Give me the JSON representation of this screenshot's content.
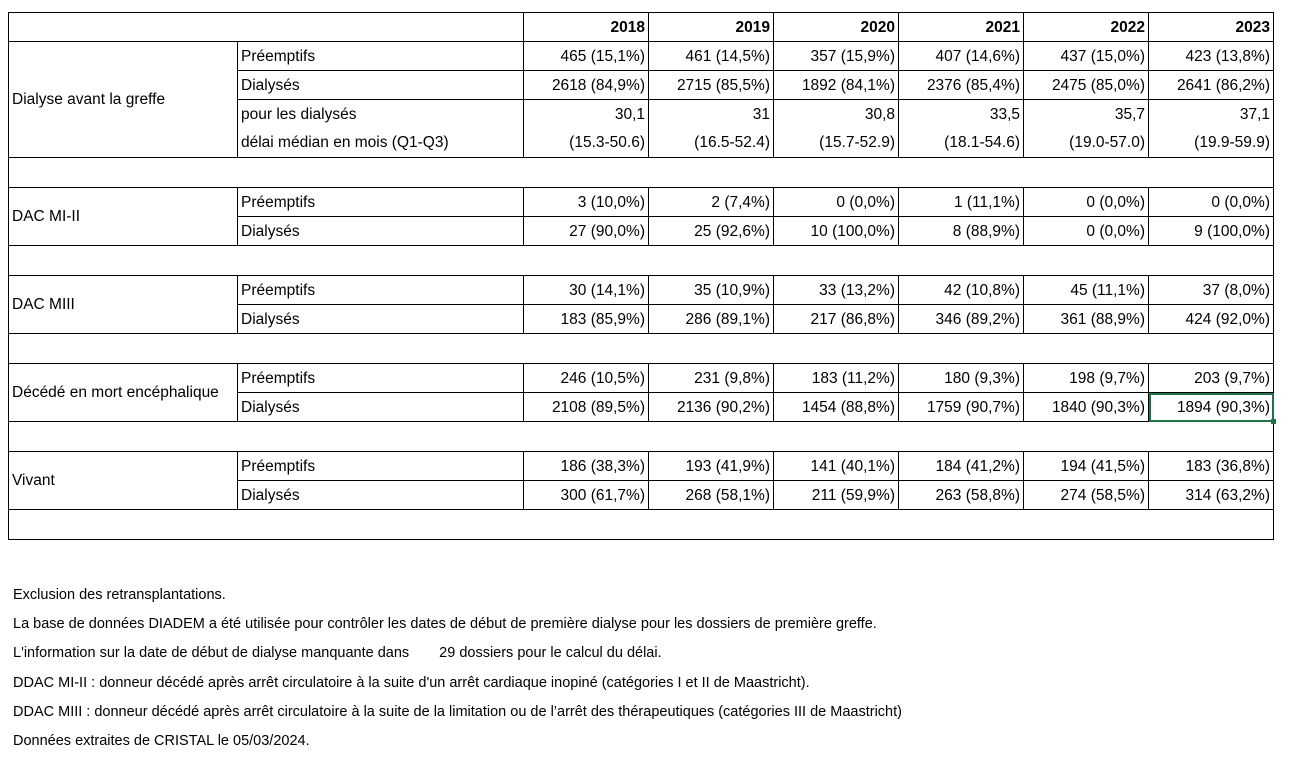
{
  "years": [
    "2018",
    "2019",
    "2020",
    "2021",
    "2022",
    "2023"
  ],
  "groups": [
    {
      "label": "Dialyse avant la greffe",
      "rows": [
        {
          "label": "Préemptifs",
          "values": [
            "465 (15,1%)",
            "461 (14,5%)",
            "357 (15,9%)",
            "407 (14,6%)",
            "437 (15,0%)",
            "423 (13,8%)"
          ]
        },
        {
          "label": "Dialysés",
          "values": [
            "2618 (84,9%)",
            "2715 (85,5%)",
            "1892 (84,1%)",
            "2376 (85,4%)",
            "2475 (85,0%)",
            "2641 (86,2%)"
          ]
        },
        {
          "label": "pour les dialysés",
          "values": [
            "30,1",
            "31",
            "30,8",
            "33,5",
            "35,7",
            "37,1"
          ]
        },
        {
          "label": "délai médian en mois (Q1-Q3)",
          "values": [
            "(15.3-50.6)",
            "(16.5-52.4)",
            "(15.7-52.9)",
            "(18.1-54.6)",
            "(19.0-57.0)",
            "(19.9-59.9)"
          ]
        }
      ]
    },
    {
      "label": "DAC MI-II",
      "rows": [
        {
          "label": "Préemptifs",
          "values": [
            "3 (10,0%)",
            "2 (7,4%)",
            "0 (0,0%)",
            "1 (11,1%)",
            "0 (0,0%)",
            "0 (0,0%)"
          ]
        },
        {
          "label": "Dialysés",
          "values": [
            "27 (90,0%)",
            "25 (92,6%)",
            "10 (100,0%)",
            "8 (88,9%)",
            "0 (0,0%)",
            "9 (100,0%)"
          ]
        }
      ]
    },
    {
      "label": "DAC MIII",
      "rows": [
        {
          "label": "Préemptifs",
          "values": [
            "30 (14,1%)",
            "35 (10,9%)",
            "33 (13,2%)",
            "42 (10,8%)",
            "45 (11,1%)",
            "37 (8,0%)"
          ]
        },
        {
          "label": "Dialysés",
          "values": [
            "183 (85,9%)",
            "286 (89,1%)",
            "217 (86,8%)",
            "346 (89,2%)",
            "361 (88,9%)",
            "424 (92,0%)"
          ]
        }
      ]
    },
    {
      "label": "Décédé en mort encéphalique",
      "rows": [
        {
          "label": "Préemptifs",
          "values": [
            "246 (10,5%)",
            "231 (9,8%)",
            "183 (11,2%)",
            "180 (9,3%)",
            "198 (9,7%)",
            "203 (9,7%)"
          ]
        },
        {
          "label": "Dialysés",
          "values": [
            "2108 (89,5%)",
            "2136 (90,2%)",
            "1454 (88,8%)",
            "1759 (90,7%)",
            "1840 (90,3%)",
            "1894 (90,3%)"
          ]
        }
      ]
    },
    {
      "label": "Vivant",
      "rows": [
        {
          "label": "Préemptifs",
          "values": [
            "186 (38,3%)",
            "193 (41,9%)",
            "141 (40,1%)",
            "184 (41,2%)",
            "194 (41,5%)",
            "183 (36,8%)"
          ]
        },
        {
          "label": "Dialysés",
          "values": [
            "300 (61,7%)",
            "268 (58,1%)",
            "211 (59,9%)",
            "263 (58,8%)",
            "274 (58,5%)",
            "314 (63,2%)"
          ]
        }
      ]
    }
  ],
  "notes": [
    "Exclusion des retransplantations.",
    "La base de données DIADEM a été utilisée pour contrôler les dates de début de première dialyse pour les dossiers de première greffe.",
    {
      "before": "L'information sur la date de début de dialyse manquante dans",
      "after": "29 dossiers pour le calcul du délai."
    },
    "DDAC MI-II : donneur décédé après arrêt circulatoire à la suite d'un arrêt cardiaque inopiné (catégories I et II de Maastricht).",
    "DDAC MIII : donneur décédé après arrêt circulatoire à la suite de la limitation ou de l’arrêt des thérapeutiques (catégories III de Maastricht)",
    "Données extraites de CRISTAL le 05/03/2024."
  ],
  "colors": {
    "selection": "#217346",
    "grid": "#000000"
  }
}
